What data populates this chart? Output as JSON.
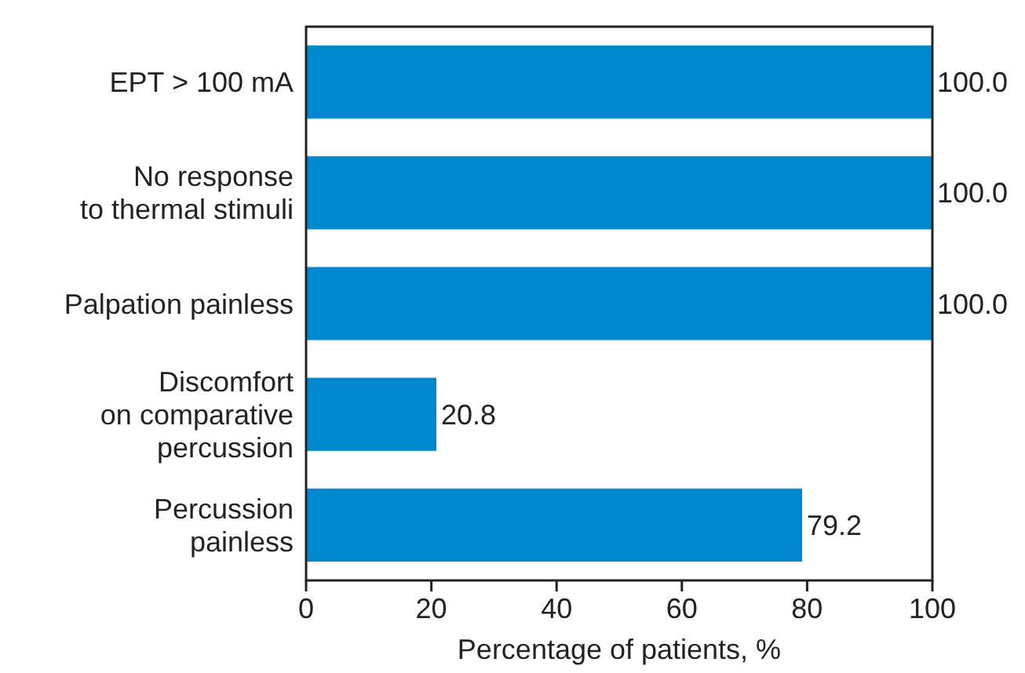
{
  "chart_data": {
    "type": "bar",
    "orientation": "horizontal",
    "xlabel": "Percentage of patients, %",
    "categories": [
      "EPT > 100 mA",
      "No response\nto thermal stimuli",
      "Palpation painless",
      "Discomfort\non comparative\npercussion",
      "Percussion\npainless"
    ],
    "values": [
      100.0,
      100.0,
      100.0,
      20.8,
      79.2
    ],
    "color": "#0088cf",
    "value_labels": [
      "100.0",
      "100.0",
      "100.0",
      "20.8",
      "79.2"
    ],
    "xlim": [
      0,
      100
    ],
    "xticks": [
      0,
      20,
      40,
      60,
      80,
      100
    ],
    "grid": false
  }
}
